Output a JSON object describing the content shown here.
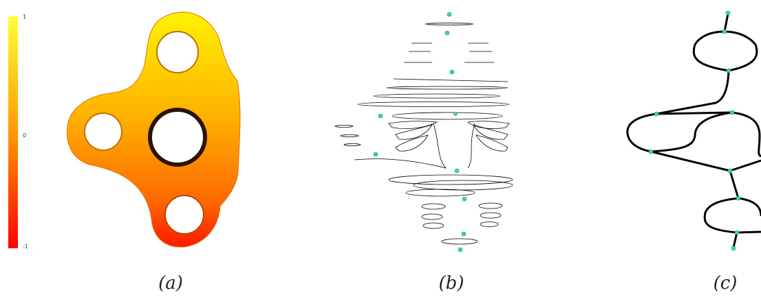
{
  "colorbar": {
    "ticks": [
      "1",
      "0",
      "-1"
    ],
    "color_top": "#ffff33",
    "color_mid": "#ff9900",
    "color_bottom": "#ff0000"
  },
  "captions": {
    "a": "(a)",
    "b": "(b)",
    "c": "(c)"
  },
  "colors": {
    "node": "#3ddc84",
    "line": "#000000"
  }
}
